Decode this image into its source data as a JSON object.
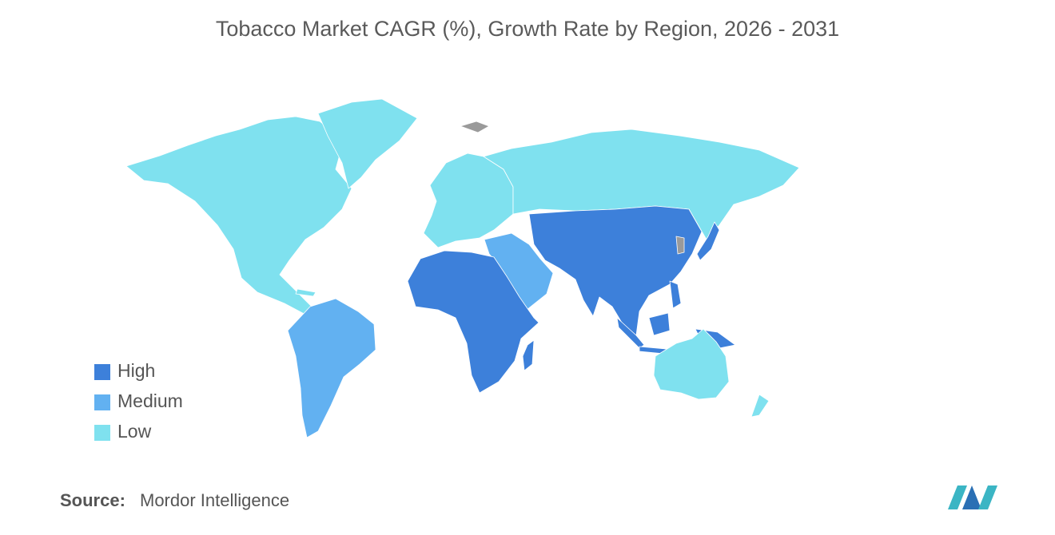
{
  "title": "Tobacco Market CAGR (%), Growth Rate by Region, 2026 - 2031",
  "legend": [
    {
      "label": "High",
      "color": "#3d80da"
    },
    {
      "label": "Medium",
      "color": "#62b1f1"
    },
    {
      "label": "Low",
      "color": "#7fe1ef"
    }
  ],
  "source": {
    "label": "Source:",
    "text": "Mordor Intelligence"
  }
}
